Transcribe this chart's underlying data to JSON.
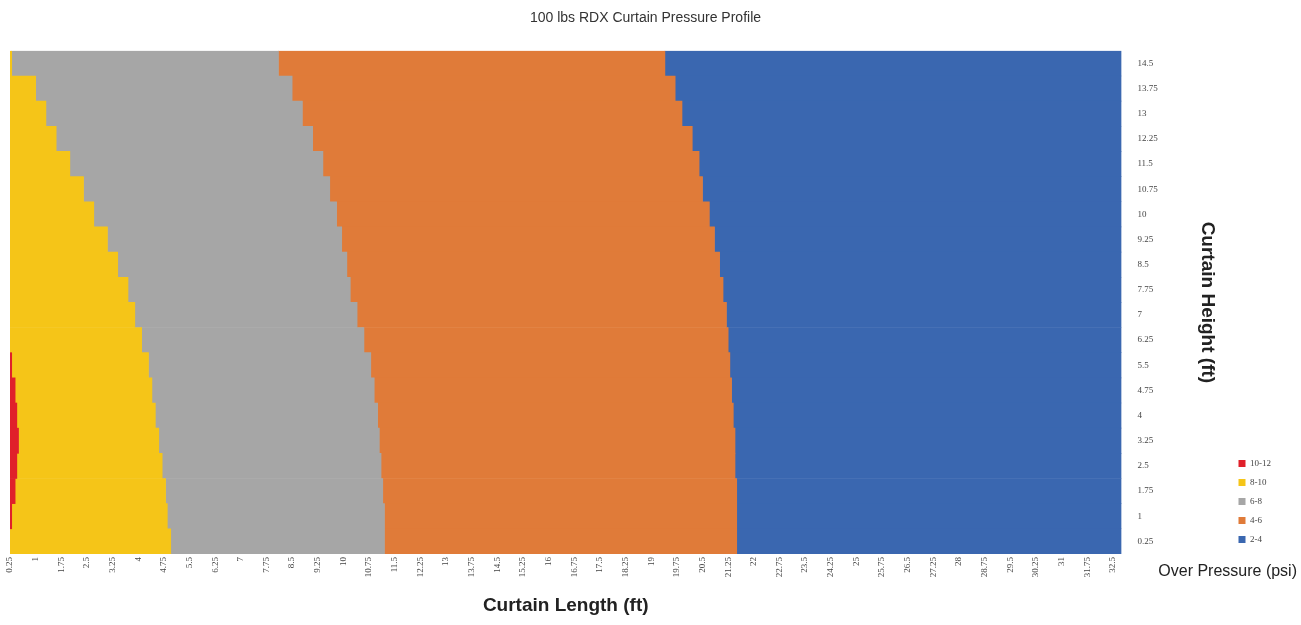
{
  "chart_data": {
    "type": "bar",
    "orientation": "horizontal",
    "stacked": true,
    "title": "100 lbs RDX Curtain Pressure Profile",
    "xlabel": "Curtain Length (ft)",
    "ylabel": "Curtain Height (ft)",
    "legend_title": "Over Pressure (psi)",
    "legend": "bottom right",
    "grid": false,
    "categories": [
      "14.5",
      "13.75",
      "13",
      "12.25",
      "11.5",
      "10.75",
      "10",
      "9.25",
      "8.5",
      "7.75",
      "7",
      "6.25",
      "5.5",
      "4.75",
      "4",
      "3.25",
      "2.5",
      "1.75",
      "1",
      "0.25"
    ],
    "xlim": [
      0.25,
      32.75
    ],
    "xticks": [
      0.25,
      1,
      1.75,
      2.5,
      3.25,
      4,
      4.75,
      5.5,
      6.25,
      7,
      7.75,
      8.5,
      9.25,
      10,
      10.75,
      11.5,
      12.25,
      13,
      13.75,
      14.5,
      15.25,
      16,
      16.75,
      17.5,
      18.25,
      19,
      19.75,
      20.5,
      21.25,
      22,
      22.75,
      23.5,
      24.25,
      25,
      25.75,
      26.5,
      27.25,
      28,
      28.75,
      29.5,
      30.25,
      31,
      31.75,
      32.5
    ],
    "series": [
      {
        "name": "10-12",
        "color": "#e0202a",
        "values": [
          null,
          null,
          null,
          null,
          null,
          null,
          null,
          null,
          null,
          null,
          null,
          null,
          0.3,
          0.4,
          0.45,
          0.5,
          0.45,
          0.4,
          0.3,
          null
        ]
      },
      {
        "name": "8-10",
        "color": "#f5c518",
        "values": [
          0.3,
          1.0,
          1.3,
          1.6,
          2.0,
          2.4,
          2.7,
          3.1,
          3.4,
          3.7,
          3.9,
          4.1,
          4.0,
          4.0,
          4.05,
          4.1,
          4.25,
          4.4,
          4.55,
          4.95
        ]
      },
      {
        "name": "6-8",
        "color": "#a6a6a6",
        "values": [
          7.8,
          7.5,
          7.5,
          7.5,
          7.4,
          7.2,
          7.1,
          6.85,
          6.7,
          6.5,
          6.5,
          6.5,
          6.5,
          6.5,
          6.5,
          6.45,
          6.4,
          6.35,
          6.35,
          6.25
        ]
      },
      {
        "name": "4-6",
        "color": "#e07b39",
        "values": [
          11.3,
          11.2,
          11.1,
          11.1,
          11.0,
          10.9,
          10.9,
          10.9,
          10.9,
          10.9,
          10.8,
          10.65,
          10.5,
          10.45,
          10.4,
          10.4,
          10.35,
          10.35,
          10.3,
          10.3
        ]
      },
      {
        "name": "2-4",
        "color": "#3a67b0",
        "values": [
          13.35,
          13.05,
          12.85,
          12.55,
          12.35,
          12.25,
          12.05,
          11.9,
          11.75,
          11.65,
          11.55,
          11.5,
          11.45,
          11.4,
          11.35,
          11.3,
          11.3,
          11.25,
          11.25,
          11.25
        ]
      }
    ]
  }
}
